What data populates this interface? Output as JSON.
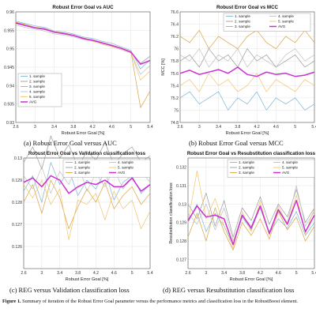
{
  "figure_caption": {
    "label": "Figure 1.",
    "text": "Summary of iteration of the Robust Error Goal parameter versus the performance metrics and classification loss in the RobustBoost element."
  },
  "subcaptions": [
    "(a) Robust Error Goal versus AUC",
    "(b) Robust Error Goal versus MCC",
    "(c) REG versus Validation classification loss",
    "(d) REG versus Resubstitution classification loss"
  ],
  "series_colors": [
    "#7fb4d6",
    "#9a9a9a",
    "#d9a441",
    "#c0c0c0",
    "#f2c46c",
    "#cc2fd0"
  ],
  "chart_data": [
    {
      "type": "line",
      "title": "Robust Error Goal vs AUC",
      "xlabel": "Robust Error Goal [%]",
      "ylabel": "",
      "xlim": [
        2.6,
        5.4
      ],
      "ylim": [
        0.93,
        0.96
      ],
      "xticks": [
        "2.6",
        "3",
        "3.4",
        "3.8",
        "4.2",
        "4.6",
        "5",
        "5.4"
      ],
      "yticks": [
        "0.93",
        "0.935",
        "0.94",
        "0.945",
        "0.95",
        "0.955",
        "0.96"
      ],
      "legend": [
        "1. sample",
        "2. sample",
        "3. sample",
        "4. sample",
        "5. sample",
        "AVG"
      ],
      "legend_position": "bottom-left",
      "grid": true,
      "x": [
        2.6,
        2.8,
        3.0,
        3.2,
        3.4,
        3.6,
        3.8,
        4.0,
        4.2,
        4.4,
        4.6,
        4.8,
        5.0,
        5.2,
        5.4
      ],
      "series": [
        {
          "name": "1. sample",
          "values": [
            0.9575,
            0.9568,
            0.9562,
            0.9558,
            0.9548,
            0.9546,
            0.954,
            0.9532,
            0.9528,
            0.952,
            0.9515,
            0.9505,
            0.9495,
            0.9445,
            0.947
          ]
        },
        {
          "name": "2. sample",
          "values": [
            0.9568,
            0.9562,
            0.9556,
            0.9552,
            0.9545,
            0.954,
            0.9536,
            0.953,
            0.9522,
            0.9515,
            0.9508,
            0.95,
            0.949,
            0.946,
            0.948
          ]
        },
        {
          "name": "3. sample",
          "values": [
            0.9572,
            0.9566,
            0.9558,
            0.9555,
            0.9546,
            0.9543,
            0.9537,
            0.9528,
            0.9524,
            0.9517,
            0.951,
            0.9502,
            0.9492,
            0.934,
            0.9385
          ]
        },
        {
          "name": "4. sample",
          "values": [
            0.9564,
            0.9558,
            0.9553,
            0.9548,
            0.954,
            0.9537,
            0.9532,
            0.9525,
            0.952,
            0.9512,
            0.9505,
            0.9497,
            0.9488,
            0.943,
            0.9455
          ]
        },
        {
          "name": "5. sample",
          "values": [
            0.957,
            0.9563,
            0.9557,
            0.9553,
            0.9544,
            0.9541,
            0.9535,
            0.9527,
            0.9521,
            0.9514,
            0.9507,
            0.9499,
            0.949,
            0.9415,
            0.944
          ]
        },
        {
          "name": "AVG",
          "values": [
            0.957,
            0.9563,
            0.9557,
            0.9553,
            0.9545,
            0.9541,
            0.9536,
            0.9528,
            0.9523,
            0.9516,
            0.9509,
            0.9501,
            0.9491,
            0.9458,
            0.9468
          ]
        }
      ]
    },
    {
      "type": "line",
      "title": "Robust Error Goal vs MCC",
      "xlabel": "Robust Error Goal [%]",
      "ylabel": "MCC [%]",
      "xlim": [
        2.6,
        5.4
      ],
      "ylim": [
        74.8,
        76.6
      ],
      "xticks": [
        "2.6",
        "3",
        "3.4",
        "3.8",
        "4.2",
        "4.6",
        "5",
        "5.4"
      ],
      "yticks": [
        "74.8",
        "75",
        "75.2",
        "75.4",
        "75.6",
        "75.8",
        "76",
        "76.2",
        "76.4",
        "76.6"
      ],
      "legend": [
        "1. sample",
        "2. sample",
        "3. sample",
        "4. sample",
        "5. sample",
        "AVG"
      ],
      "legend_position": "top-right",
      "grid": true,
      "x": [
        2.6,
        2.8,
        3.0,
        3.2,
        3.4,
        3.6,
        3.8,
        4.0,
        4.2,
        4.4,
        4.6,
        4.8,
        5.0,
        5.2,
        5.4
      ],
      "series": [
        {
          "name": "1. sample",
          "values": [
            75.2,
            75.3,
            75.1,
            75.2,
            75.3,
            75.0,
            75.2,
            75.1,
            75.3,
            75.0,
            75.2,
            75.1,
            75.2,
            75.0,
            75.1
          ]
        },
        {
          "name": "2. sample",
          "values": [
            75.8,
            75.9,
            75.7,
            76.0,
            75.8,
            75.9,
            75.7,
            76.0,
            75.8,
            75.9,
            75.7,
            75.8,
            75.9,
            75.7,
            75.8
          ]
        },
        {
          "name": "3. sample",
          "values": [
            76.2,
            76.1,
            76.3,
            76.0,
            76.2,
            76.1,
            76.0,
            76.2,
            76.3,
            76.1,
            76.0,
            76.2,
            76.1,
            76.3,
            76.1
          ]
        },
        {
          "name": "4. sample",
          "values": [
            75.9,
            75.8,
            76.0,
            75.7,
            75.9,
            75.8,
            76.0,
            75.7,
            75.9,
            75.8,
            75.7,
            75.9,
            76.0,
            75.8,
            75.9
          ]
        },
        {
          "name": "5. sample",
          "values": [
            75.4,
            75.5,
            75.3,
            75.6,
            75.4,
            75.5,
            75.3,
            75.4,
            75.6,
            75.3,
            75.5,
            75.4,
            75.3,
            75.5,
            75.4
          ]
        },
        {
          "name": "AVG",
          "values": [
            75.6,
            75.65,
            75.58,
            75.62,
            75.66,
            75.6,
            75.7,
            75.58,
            75.55,
            75.62,
            75.58,
            75.6,
            75.55,
            75.57,
            75.62
          ]
        }
      ]
    },
    {
      "type": "line",
      "title": "Robust Error Goal vs Validation classification loss",
      "xlabel": "Robust Error Goal [%]",
      "ylabel": "",
      "xlim": [
        2.6,
        5.4
      ],
      "ylim": [
        0.125,
        0.13
      ],
      "xticks": [
        "2.6",
        "3",
        "3.4",
        "3.8",
        "4.2",
        "4.6",
        "5",
        "5.4"
      ],
      "yticks": [
        "0.126",
        "0.127",
        "0.128",
        "0.129",
        "0.13"
      ],
      "legend": [
        "1. sample",
        "2. sample",
        "3. sample",
        "4. sample",
        "5. sample",
        "AVG"
      ],
      "legend_position": "top-right",
      "grid": true,
      "x": [
        2.6,
        2.8,
        3.0,
        3.2,
        3.4,
        3.6,
        3.8,
        4.0,
        4.2,
        4.4,
        4.6,
        4.8,
        5.0,
        5.2,
        5.4
      ],
      "series": [
        {
          "name": "1. sample",
          "values": [
            0.1285,
            0.1292,
            0.128,
            0.1298,
            0.1288,
            0.1295,
            0.1283,
            0.129,
            0.1286,
            0.1294,
            0.1281,
            0.1289,
            0.1292,
            0.1284,
            0.1288
          ]
        },
        {
          "name": "2. sample",
          "values": [
            0.1298,
            0.1305,
            0.1295,
            0.131,
            0.13,
            0.1306,
            0.1296,
            0.1303,
            0.1299,
            0.1307,
            0.1297,
            0.1302,
            0.1305,
            0.1298,
            0.1301
          ]
        },
        {
          "name": "3. sample",
          "values": [
            0.128,
            0.1288,
            0.1275,
            0.129,
            0.1282,
            0.1268,
            0.1278,
            0.1286,
            0.128,
            0.1289,
            0.1277,
            0.1283,
            0.1287,
            0.1279,
            0.1284
          ]
        },
        {
          "name": "4. sample",
          "values": [
            0.1292,
            0.1286,
            0.1296,
            0.1284,
            0.1294,
            0.1288,
            0.1298,
            0.1285,
            0.1293,
            0.1287,
            0.1295,
            0.1286,
            0.1291,
            0.1294,
            0.1289
          ]
        },
        {
          "name": "5. sample",
          "values": [
            0.1288,
            0.1282,
            0.129,
            0.1279,
            0.1286,
            0.1263,
            0.1281,
            0.1279,
            0.1284,
            0.1272,
            0.1285,
            0.1277,
            0.1281,
            0.1268,
            0.1276
          ]
        },
        {
          "name": "AVG",
          "values": [
            0.1289,
            0.1291,
            0.1287,
            0.1292,
            0.129,
            0.1284,
            0.1287,
            0.1289,
            0.1288,
            0.129,
            0.1287,
            0.1287,
            0.1291,
            0.1285,
            0.1288
          ]
        }
      ]
    },
    {
      "type": "line",
      "title": "Robust Error Goal vs Resubstitution classification loss",
      "xlabel": "Robust Error Goal [%]",
      "ylabel": "Resubstitution classification loss",
      "xlim": [
        2.6,
        5.4
      ],
      "ylim": [
        0.1265,
        0.1325
      ],
      "xticks": [
        "2.6",
        "3",
        "3.4",
        "3.8",
        "4.2",
        "4.6",
        "5",
        "5.4"
      ],
      "yticks": [
        "0.127",
        "0.128",
        "0.129",
        "0.13",
        "0.131",
        "0.132"
      ],
      "legend": [
        "1. sample",
        "2. sample",
        "3. sample",
        "4. sample",
        "5. sample",
        "AVG"
      ],
      "legend_position": "top-right",
      "grid": true,
      "x": [
        2.6,
        2.8,
        3.0,
        3.2,
        3.4,
        3.6,
        3.8,
        4.0,
        4.2,
        4.4,
        4.6,
        4.8,
        5.0,
        5.2,
        5.4
      ],
      "series": [
        {
          "name": "1. sample",
          "values": [
            0.129,
            0.13,
            0.1285,
            0.1295,
            0.1288,
            0.1278,
            0.1293,
            0.1286,
            0.1298,
            0.1284,
            0.1292,
            0.1287,
            0.1296,
            0.1283,
            0.129
          ]
        },
        {
          "name": "2. sample",
          "values": [
            0.13,
            0.1292,
            0.1306,
            0.1288,
            0.1302,
            0.1282,
            0.1298,
            0.1291,
            0.1304,
            0.1289,
            0.13,
            0.1293,
            0.1308,
            0.129,
            0.1298
          ]
        },
        {
          "name": "3. sample",
          "values": [
            0.1282,
            0.1295,
            0.128,
            0.1298,
            0.1285,
            0.1275,
            0.129,
            0.1283,
            0.1292,
            0.1281,
            0.1296,
            0.1286,
            0.1293,
            0.128,
            0.1288
          ]
        },
        {
          "name": "4. sample",
          "values": [
            0.1295,
            0.1289,
            0.13,
            0.1286,
            0.1298,
            0.128,
            0.1294,
            0.1288,
            0.1299,
            0.1285,
            0.1297,
            0.129,
            0.131,
            0.1288,
            0.1296
          ]
        },
        {
          "name": "5. sample",
          "values": [
            0.129,
            0.1318,
            0.1292,
            0.1303,
            0.1288,
            0.1276,
            0.1296,
            0.1285,
            0.1302,
            0.1283,
            0.1299,
            0.1289,
            0.1305,
            0.1284,
            0.1298
          ]
        },
        {
          "name": "AVG",
          "values": [
            0.1291,
            0.1299,
            0.1293,
            0.1294,
            0.1292,
            0.1278,
            0.1294,
            0.1287,
            0.1299,
            0.1284,
            0.1297,
            0.1289,
            0.1302,
            0.1285,
            0.1294
          ]
        }
      ]
    }
  ]
}
